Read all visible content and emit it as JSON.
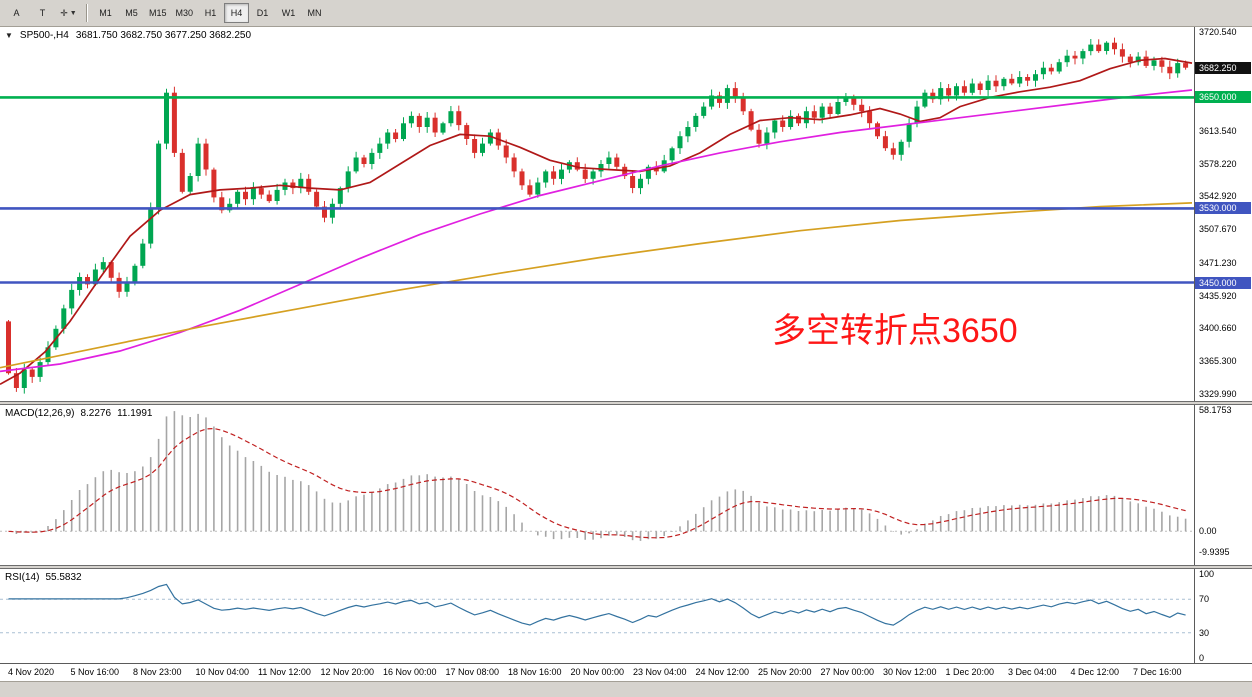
{
  "toolbar": {
    "tools": [
      {
        "label": "A",
        "name": "font-tool-button"
      },
      {
        "label": "T",
        "name": "text-tool-button"
      },
      {
        "label": "▾",
        "name": "chart-objects-dropdown-button"
      }
    ],
    "timeframes": [
      {
        "label": "M1"
      },
      {
        "label": "M5"
      },
      {
        "label": "M15"
      },
      {
        "label": "M30"
      },
      {
        "label": "H1"
      },
      {
        "label": "H4",
        "active": true
      },
      {
        "label": "D1"
      },
      {
        "label": "W1"
      },
      {
        "label": "MN"
      }
    ]
  },
  "main_chart": {
    "title": "SP500-,H4",
    "ohlc": "3681.750 3682.750 3677.250 3682.250",
    "annotation": {
      "text": "多空转折点3650",
      "color": "#fe1616"
    },
    "axis_labels": [
      "3720.540",
      "3613.540",
      "3578.220",
      "3542.920",
      "3507.670",
      "3471.230",
      "3435.920",
      "3400.660",
      "3365.300",
      "3329.990"
    ],
    "badges": [
      {
        "label": "3682.250",
        "value": 3682.25,
        "color": "#111111"
      },
      {
        "label": "3650.000",
        "value": 3650.0,
        "color": "#00b050"
      },
      {
        "label": "3530.000",
        "value": 3530.0,
        "color": "#4055c0"
      },
      {
        "label": "3450.000",
        "value": 3450.0,
        "color": "#4055c0"
      }
    ]
  },
  "macd": {
    "name": "MACD(12,26,9)",
    "value_main": "8.2276",
    "value_signal": "11.1991",
    "axis": [
      {
        "value": 58.1753,
        "label": "58.1753"
      },
      {
        "value": 0,
        "label": "0.00"
      },
      {
        "value": -9.9395,
        "label": "-9.9395"
      }
    ]
  },
  "rsi": {
    "name": "RSI(14)",
    "value": "55.5832",
    "levels": [
      70,
      30
    ],
    "axis": [
      {
        "value": 100,
        "label": "100"
      },
      {
        "value": 70,
        "label": "70"
      },
      {
        "value": 30,
        "label": "30"
      },
      {
        "value": 0,
        "label": "0"
      }
    ]
  },
  "time_axis": {
    "labels": [
      "4 Nov 2020",
      "5 Nov 16:00",
      "8 Nov 23:00",
      "10 Nov 04:00",
      "11 Nov 12:00",
      "12 Nov 20:00",
      "16 Nov 00:00",
      "17 Nov 08:00",
      "18 Nov 16:00",
      "20 Nov 00:00",
      "23 Nov 04:00",
      "24 Nov 12:00",
      "25 Nov 20:00",
      "27 Nov 00:00",
      "30 Nov 12:00",
      "1 Dec 20:00",
      "3 Dec 04:00",
      "4 Dec 12:00",
      "7 Dec 16:00"
    ]
  },
  "chart_data": {
    "type": "candlestick",
    "symbol": "SP500-",
    "timeframe": "H4",
    "title": "SP500-,H4 3681.750 3682.750 3677.250 3682.250",
    "price_axis_range": [
      3322,
      3726
    ],
    "first_open": 3408,
    "closes": [
      3352,
      3336,
      3356,
      3348,
      3364,
      3380,
      3400,
      3422,
      3442,
      3456,
      3448,
      3464,
      3472,
      3455,
      3440,
      3450,
      3468,
      3492,
      3530,
      3600,
      3655,
      3590,
      3548,
      3565,
      3600,
      3572,
      3542,
      3528,
      3535,
      3548,
      3540,
      3552,
      3545,
      3538,
      3550,
      3558,
      3552,
      3562,
      3548,
      3532,
      3520,
      3535,
      3552,
      3570,
      3585,
      3578,
      3590,
      3600,
      3612,
      3605,
      3622,
      3630,
      3618,
      3628,
      3612,
      3622,
      3635,
      3620,
      3605,
      3590,
      3600,
      3612,
      3598,
      3585,
      3570,
      3555,
      3545,
      3558,
      3570,
      3562,
      3572,
      3580,
      3572,
      3562,
      3570,
      3578,
      3585,
      3575,
      3565,
      3552,
      3562,
      3575,
      3570,
      3582,
      3595,
      3608,
      3618,
      3630,
      3640,
      3652,
      3644,
      3660,
      3650,
      3635,
      3615,
      3600,
      3612,
      3625,
      3618,
      3630,
      3622,
      3635,
      3628,
      3640,
      3632,
      3645,
      3650,
      3642,
      3635,
      3622,
      3608,
      3595,
      3588,
      3602,
      3622,
      3640,
      3655,
      3648,
      3660,
      3652,
      3662,
      3655,
      3665,
      3658,
      3668,
      3662,
      3670,
      3665,
      3672,
      3668,
      3675,
      3682,
      3678,
      3688,
      3695,
      3692,
      3700,
      3707,
      3700,
      3709,
      3702,
      3694,
      3688,
      3694,
      3684,
      3690,
      3683,
      3676,
      3687,
      3682
    ],
    "colors": {
      "up": "#00a651",
      "down": "#d9302c"
    },
    "hlines": [
      {
        "price": 3650,
        "color": "#00b050"
      },
      {
        "price": 3530,
        "color": "#4055c0"
      },
      {
        "price": 3450,
        "color": "#4055c0"
      }
    ],
    "current_price": 3682.25,
    "moving_averages": [
      {
        "name": "fast-red",
        "color": "#b01818",
        "points": [
          [
            0,
            3340
          ],
          [
            20,
            3352
          ],
          [
            45,
            3375
          ],
          [
            70,
            3408
          ],
          [
            100,
            3455
          ],
          [
            130,
            3500
          ],
          [
            160,
            3528
          ],
          [
            190,
            3545
          ],
          [
            220,
            3550
          ],
          [
            250,
            3552
          ],
          [
            280,
            3555
          ],
          [
            310,
            3552
          ],
          [
            340,
            3550
          ],
          [
            370,
            3558
          ],
          [
            400,
            3578
          ],
          [
            430,
            3598
          ],
          [
            460,
            3610
          ],
          [
            490,
            3608
          ],
          [
            520,
            3596
          ],
          [
            550,
            3582
          ],
          [
            580,
            3574
          ],
          [
            610,
            3572
          ],
          [
            640,
            3570
          ],
          [
            670,
            3576
          ],
          [
            700,
            3590
          ],
          [
            730,
            3610
          ],
          [
            760,
            3625
          ],
          [
            790,
            3628
          ],
          [
            820,
            3626
          ],
          [
            850,
            3631
          ],
          [
            880,
            3638
          ],
          [
            900,
            3632
          ],
          [
            920,
            3624
          ],
          [
            940,
            3628
          ],
          [
            960,
            3640
          ],
          [
            990,
            3650
          ],
          [
            1020,
            3656
          ],
          [
            1050,
            3661
          ],
          [
            1080,
            3668
          ],
          [
            1110,
            3681
          ],
          [
            1140,
            3690
          ],
          [
            1165,
            3692
          ],
          [
            1192,
            3687
          ]
        ]
      },
      {
        "name": "mid-magenta",
        "color": "#e020e0",
        "points": [
          [
            0,
            3354
          ],
          [
            60,
            3362
          ],
          [
            120,
            3376
          ],
          [
            180,
            3396
          ],
          [
            240,
            3420
          ],
          [
            300,
            3448
          ],
          [
            360,
            3476
          ],
          [
            420,
            3502
          ],
          [
            480,
            3524
          ],
          [
            540,
            3544
          ],
          [
            600,
            3560
          ],
          [
            660,
            3576
          ],
          [
            720,
            3590
          ],
          [
            780,
            3602
          ],
          [
            840,
            3612
          ],
          [
            900,
            3620
          ],
          [
            960,
            3628
          ],
          [
            1020,
            3636
          ],
          [
            1080,
            3644
          ],
          [
            1140,
            3652
          ],
          [
            1192,
            3658
          ]
        ]
      },
      {
        "name": "slow-orange",
        "color": "#d5a021",
        "points": [
          [
            0,
            3358
          ],
          [
            100,
            3380
          ],
          [
            200,
            3402
          ],
          [
            300,
            3422
          ],
          [
            400,
            3442
          ],
          [
            500,
            3460
          ],
          [
            600,
            3477
          ],
          [
            700,
            3492
          ],
          [
            800,
            3506
          ],
          [
            900,
            3517
          ],
          [
            1000,
            3525
          ],
          [
            1100,
            3532
          ],
          [
            1192,
            3536
          ]
        ]
      }
    ],
    "indicators": {
      "macd": {
        "params": [
          12,
          26,
          9
        ],
        "range": [
          -16,
          60
        ],
        "histogram_color": "#a6a6a6",
        "signal_color": "#c02020"
      },
      "rsi": {
        "params": [
          14
        ],
        "range": [
          -6,
          106
        ],
        "line_color": "#33729f",
        "level_color": "#a9bfd4"
      }
    }
  }
}
